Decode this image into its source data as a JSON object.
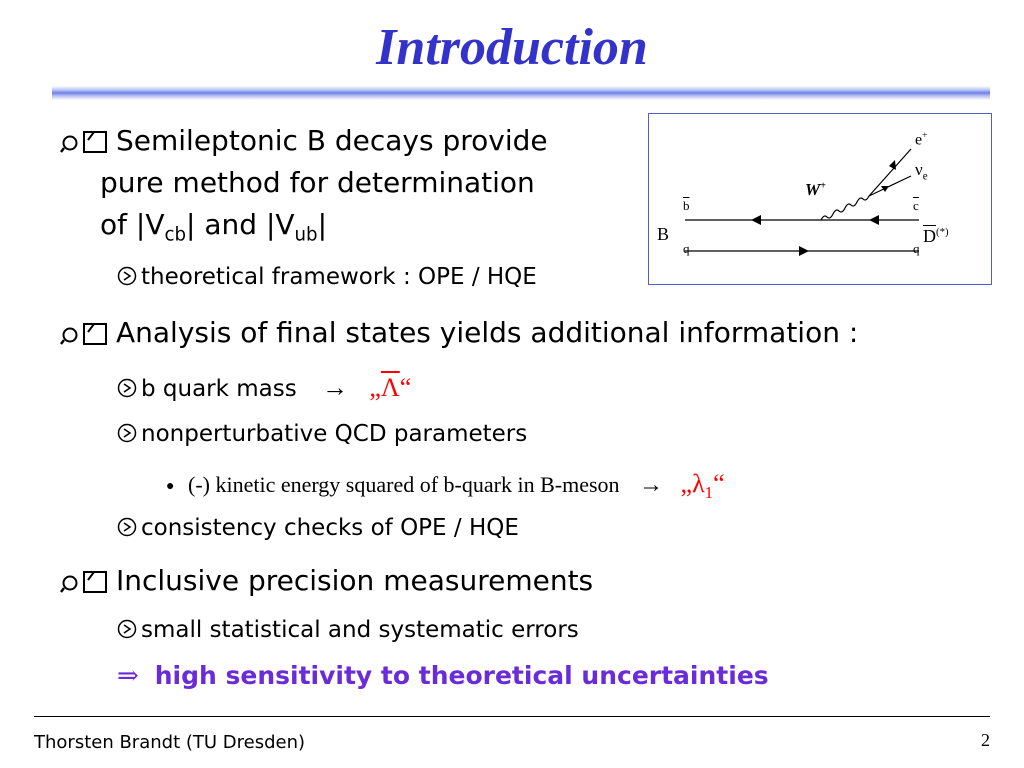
{
  "title": "Introduction",
  "bullets": {
    "b1_line1": "Semileptonic B decays provide",
    "b1_line2": "pure method for determination",
    "b1_line3_pre": "of |V",
    "b1_sub1": "cb",
    "b1_mid": "| and |V",
    "b1_sub2": "ub",
    "b1_end": "|",
    "b1_sub_a": "theoretical framework : OPE / HQE",
    "b2": "Analysis of final states yields additional information :",
    "b2_sub_a": "b quark mass",
    "arrow": "→",
    "lambda_open": "„",
    "lambda_bar": "Λ",
    "lambda_close": "“",
    "b2_sub_b": "nonperturbative QCD parameters",
    "b2_sub_b_item": "(-) kinetic energy squared of b-quark in B-meson",
    "lambda1": "λ",
    "lambda1_sub": "1",
    "b2_sub_c": "consistency checks of OPE / HQE",
    "b3": "Inclusive precision measurements",
    "b3_sub_a": "small statistical and systematic errors",
    "implies": "⇒",
    "b3_conclusion": "high sensitivity to theoretical uncertainties"
  },
  "diagram": {
    "e_plus": "e",
    "e_plus_sup": "+",
    "nu": "ν",
    "nu_sub": "e",
    "w": "W",
    "w_sup": "+",
    "b_bar": "b",
    "c_bar": "c",
    "q_left": "q",
    "q_right": "q",
    "B": "B",
    "D": "D",
    "D_sup": "(*)"
  },
  "footer": {
    "author": "Thorsten Brandt (TU Dresden)",
    "page": "2"
  },
  "colors": {
    "title": "#3333cc",
    "highlight_red": "#ff0000",
    "conclusion_purple": "#6a2bd8"
  },
  "icons": {
    "level1": "magnifier-page-icon",
    "level2": "node-circle-icon",
    "level3": "dot-bullet"
  }
}
